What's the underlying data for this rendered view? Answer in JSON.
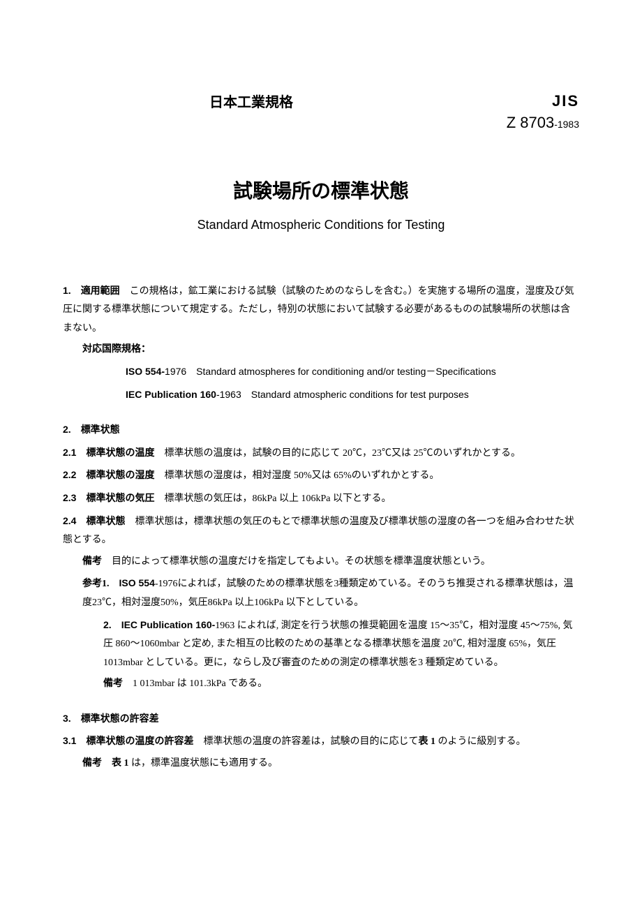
{
  "header": {
    "org": "日本工業規格",
    "jis_label": "JIS",
    "code": "Z 8703",
    "year": "-1983"
  },
  "title": {
    "main": "試験場所の標準状態",
    "sub": "Standard Atmospheric Conditions for Testing"
  },
  "sec1": {
    "num": "1.",
    "label": "適用範囲",
    "text": "　この規格は，鉱工業における試験（試験のためのならしを含む。）を実施する場所の温度，湿度及び気圧に関する標準状態について規定する。ただし，特別の状態において試験する必要があるものの試験場所の状態は含まない。"
  },
  "intl": {
    "label": "対応国際規格：",
    "iso_bold": "ISO 554-",
    "iso_rest": "1976　Standard atmospheres for conditioning and/or testing－Specifications",
    "iec_bold": "IEC Publication 160",
    "iec_rest": "-1963　Standard atmospheric conditions for test purposes"
  },
  "sec2": {
    "num": "2.",
    "label": "標準状態",
    "s21_num": "2.1",
    "s21_label": "標準状態の温度",
    "s21_text": "　標準状態の温度は，試験の目的に応じて 20℃，23℃又は 25℃のいずれかとする。",
    "s22_num": "2.2",
    "s22_label": "標準状態の湿度",
    "s22_text": "　標準状態の湿度は，相対湿度 50%又は 65%のいずれかとする。",
    "s23_num": "2.3",
    "s23_label": "標準状態の気圧",
    "s23_text": "　標準状態の気圧は，86kPa 以上 106kPa 以下とする。",
    "s24_num": "2.4",
    "s24_label": "標準状態",
    "s24_text": "　標準状態は，標準状態の気圧のもとで標準状態の温度及び標準状態の湿度の各一つを組み合わせた状態とする。",
    "note_label": "備考",
    "note_text": "　目的によって標準状態の温度だけを指定してもよい。その状態を標準温度状態という。",
    "ref_label": "参考1.",
    "ref1_bold": "ISO 554",
    "ref1_text": "-1976によれば，試験のための標準状態を3種類定めている。そのうち推奨される標準状態は，温度23℃，相対湿度50%，気圧86kPa 以上106kPa 以下としている。",
    "ref2_num": "2.",
    "ref2_bold": "IEC Publication 160-",
    "ref2_text": "1963 によれば, 測定を行う状態の推奨範囲を温度 15～35℃，相対湿度 45～75%, 気圧 860～1060mbar と定め, また相互の比較のための基準となる標準状態を温度 20℃, 相対湿度 65%，気圧 1013mbar としている。更に，ならし及び審査のための測定の標準状態を3 種類定めている。",
    "ref_note_label": "備考",
    "ref_note_text": "　1 013mbar は 101.3kPa である。"
  },
  "sec3": {
    "num": "3.",
    "label": "標準状態の許容差",
    "s31_num": "3.1",
    "s31_label": "標準状態の温度の許容差",
    "s31_text": "　標準状態の温度の許容差は，試験の目的に応じて",
    "s31_table": "表 1",
    "s31_text2": " のように級別する。",
    "note_label": "備考",
    "note_bold": "表 1",
    "note_text": " は，標準温度状態にも適用する。"
  }
}
